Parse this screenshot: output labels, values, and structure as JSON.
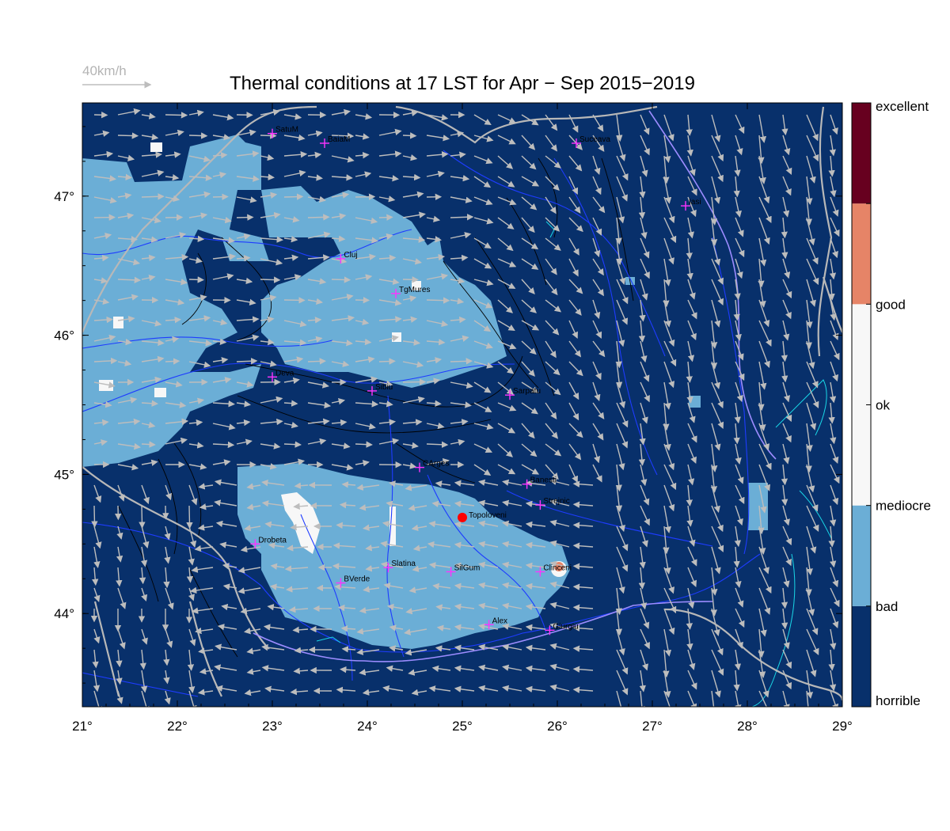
{
  "title": "Thermal conditions at 17 LST for Apr − Sep  2015−2019",
  "wind_reference": "40km/h",
  "map": {
    "lon_range": [
      21,
      29
    ],
    "lat_range": [
      43.33,
      47.67
    ],
    "lon_ticks": [
      "21°",
      "22°",
      "23°",
      "24°",
      "25°",
      "26°",
      "27°",
      "28°",
      "29°"
    ],
    "lat_ticks": [
      "44°",
      "45°",
      "46°",
      "47°"
    ],
    "lon_tick_values": [
      21,
      22,
      23,
      24,
      25,
      26,
      27,
      28,
      29
    ],
    "lat_tick_values": [
      44,
      45,
      46,
      47
    ]
  },
  "colorbar": {
    "classes": [
      "horrible",
      "bad",
      "mediocre",
      "ok",
      "good",
      "excellent"
    ],
    "colors": [
      "#08306b",
      "#6baed6",
      "#f7f7f7",
      "#f7f7f7",
      "#e68467",
      "#67001f"
    ]
  },
  "cities": [
    {
      "name": "SatuM",
      "lon": 23.0,
      "lat": 47.45
    },
    {
      "name": "BaiaM",
      "lon": 23.55,
      "lat": 47.38
    },
    {
      "name": "Suceava",
      "lon": 26.2,
      "lat": 47.38
    },
    {
      "name": "Iasi",
      "lon": 27.35,
      "lat": 46.93
    },
    {
      "name": "Cluj",
      "lon": 23.72,
      "lat": 46.55
    },
    {
      "name": "TgMures",
      "lon": 24.3,
      "lat": 46.3
    },
    {
      "name": "Deva",
      "lon": 23.0,
      "lat": 45.7
    },
    {
      "name": "Sibiu",
      "lon": 24.05,
      "lat": 45.6
    },
    {
      "name": "Sarpatu",
      "lon": 25.5,
      "lat": 45.57
    },
    {
      "name": "CArges",
      "lon": 24.55,
      "lat": 45.05
    },
    {
      "name": "Banesti",
      "lon": 25.68,
      "lat": 44.93
    },
    {
      "name": "Strejnic",
      "lon": 25.82,
      "lat": 44.78
    },
    {
      "name": "Drobeta",
      "lon": 22.82,
      "lat": 44.5
    },
    {
      "name": "Slatina",
      "lon": 24.22,
      "lat": 44.33
    },
    {
      "name": "SilGum",
      "lon": 24.88,
      "lat": 44.3
    },
    {
      "name": "Clinceni",
      "lon": 25.82,
      "lat": 44.3
    },
    {
      "name": "BVerde",
      "lon": 23.72,
      "lat": 44.22
    },
    {
      "name": "Alex",
      "lon": 25.28,
      "lat": 43.92
    },
    {
      "name": "Giurgiu",
      "lon": 25.92,
      "lat": 43.88
    }
  ],
  "highlight_site": {
    "name": "Topoloveni",
    "lon": 25.0,
    "lat": 44.69
  }
}
